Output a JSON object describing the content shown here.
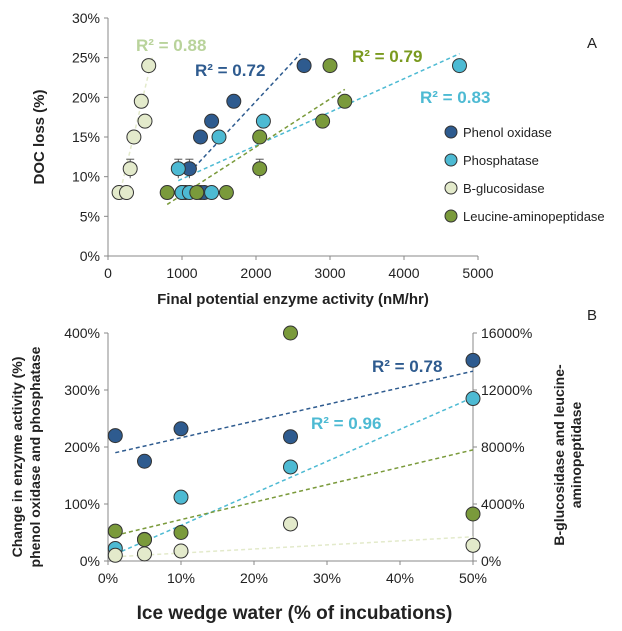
{
  "colors": {
    "phenol_oxidase": "#2e5b8f",
    "phosphatase": "#4dbad3",
    "b_glucosidase": "#e3eacb",
    "leucine_aminopeptidase": "#7a9a3b",
    "r2_phenol": "#2e5b8f",
    "r2_phosphatase": "#4dbad3",
    "r2_bglucosidase": "#b9d39b",
    "r2_leucine": "#7a9a1f",
    "axis": "#888888",
    "text": "#222222"
  },
  "chart_data": [
    {
      "type": "scatter",
      "panel_label": "A",
      "xlabel": "Final potential enzyme activity (nM/hr)",
      "ylabel": "DOC loss (%)",
      "xlim": [
        0,
        5000
      ],
      "ylim": [
        0,
        30
      ],
      "x_ticks": [
        0,
        1000,
        2000,
        3000,
        4000,
        5000
      ],
      "y_ticks": [
        0,
        5,
        10,
        15,
        20,
        25,
        30
      ],
      "x_tick_labels": [
        "0",
        "1000",
        "2000",
        "3000",
        "4000",
        "5000"
      ],
      "y_tick_labels": [
        "0%",
        "5%",
        "10%",
        "15%",
        "20%",
        "25%",
        "30%"
      ],
      "legend": [
        "Phenol oxidase",
        "Phosphatase",
        "B-glucosidase",
        "Leucine-aminopeptidase"
      ],
      "series": [
        {
          "name": "Phenol oxidase",
          "color_key": "phenol_oxidase",
          "points": [
            [
              1000,
              8
            ],
            [
              1050,
              8
            ],
            [
              1250,
              8
            ],
            [
              1300,
              8
            ],
            [
              1100,
              11
            ],
            [
              1250,
              15
            ],
            [
              1400,
              17
            ],
            [
              1700,
              19.5
            ],
            [
              2650,
              24
            ]
          ],
          "trendline": [
            [
              1100,
              10.5
            ],
            [
              2600,
              25.5
            ]
          ],
          "r2": "R² = 0.72"
        },
        {
          "name": "Phosphatase",
          "color_key": "phosphatase",
          "points": [
            [
              950,
              11
            ],
            [
              1000,
              8
            ],
            [
              1100,
              8
            ],
            [
              1400,
              8
            ],
            [
              1500,
              15
            ],
            [
              2100,
              17
            ],
            [
              4750,
              24
            ]
          ],
          "trendline": [
            [
              950,
              9.5
            ],
            [
              4750,
              25.5
            ]
          ],
          "r2": "R² = 0.83"
        },
        {
          "name": "B-glucosidase",
          "color_key": "b_glucosidase",
          "points": [
            [
              150,
              8
            ],
            [
              250,
              8
            ],
            [
              300,
              11
            ],
            [
              350,
              15
            ],
            [
              500,
              17
            ],
            [
              450,
              19.5
            ],
            [
              550,
              24
            ]
          ],
          "trendline": [
            [
              150,
              7.5
            ],
            [
              600,
              25
            ]
          ],
          "r2": "R² = 0.88"
        },
        {
          "name": "Leucine-aminopeptidase",
          "color_key": "leucine_aminopeptidase",
          "points": [
            [
              800,
              8
            ],
            [
              1200,
              8
            ],
            [
              1600,
              8
            ],
            [
              2050,
              11
            ],
            [
              2050,
              15
            ],
            [
              2900,
              17
            ],
            [
              3200,
              19.5
            ],
            [
              3000,
              24
            ]
          ],
          "trendline": [
            [
              800,
              6.5
            ],
            [
              3200,
              21
            ]
          ],
          "r2": "R² = 0.79"
        }
      ],
      "error_bars": [
        {
          "x": 300,
          "y": 11,
          "err": 1.2,
          "color_key": "b_glucosidase"
        },
        {
          "x": 950,
          "y": 11,
          "err": 1.2,
          "color_key": "phosphatase"
        },
        {
          "x": 1100,
          "y": 11,
          "err": 1.2,
          "color_key": "phenol_oxidase"
        },
        {
          "x": 2050,
          "y": 11,
          "err": 1.2,
          "color_key": "leucine_aminopeptidase"
        }
      ]
    },
    {
      "type": "scatter",
      "panel_label": "B",
      "xlabel": "Ice wedge water (% of incubations)",
      "ylabel_left": [
        "Change in enzyme activity (%)",
        "phenol oxidase and phosphatase"
      ],
      "ylabel_right": [
        "B-glucosidase and leucine-",
        "aminopeptidase"
      ],
      "xlim": [
        0,
        50
      ],
      "ylim_left": [
        0,
        400
      ],
      "ylim_right": [
        0,
        16000
      ],
      "x_ticks": [
        0,
        10,
        20,
        30,
        40,
        50
      ],
      "x_tick_labels": [
        "0%",
        "10%",
        "20%",
        "30%",
        "40%",
        "50%"
      ],
      "y_left_ticks": [
        0,
        100,
        200,
        300,
        400
      ],
      "y_left_tick_labels": [
        "0%",
        "100%",
        "200%",
        "300%",
        "400%"
      ],
      "y_right_ticks": [
        0,
        4000,
        8000,
        12000,
        16000
      ],
      "y_right_tick_labels": [
        "0%",
        "4000%",
        "8000%",
        "12000%",
        "16000%"
      ],
      "series": [
        {
          "name": "Phenol oxidase",
          "color_key": "phenol_oxidase",
          "axis": "left",
          "points": [
            [
              1,
              220
            ],
            [
              5,
              175
            ],
            [
              10,
              232
            ],
            [
              25,
              218
            ],
            [
              50,
              352
            ]
          ],
          "trendline": [
            [
              1,
              190
            ],
            [
              50,
              333
            ]
          ],
          "r2": "R² = 0.78"
        },
        {
          "name": "Phosphatase",
          "color_key": "phosphatase",
          "axis": "left",
          "points": [
            [
              1,
              22
            ],
            [
              5,
              38
            ],
            [
              10,
              112
            ],
            [
              25,
              165
            ],
            [
              50,
              285
            ]
          ],
          "trendline": [
            [
              1,
              12
            ],
            [
              50,
              287
            ]
          ],
          "r2": "R² = 0.96"
        },
        {
          "name": "B-glucosidase",
          "color_key": "b_glucosidase",
          "axis": "right",
          "points": [
            [
              1,
              400
            ],
            [
              5,
              500
            ],
            [
              10,
              700
            ],
            [
              25,
              2600
            ],
            [
              50,
              1100
            ]
          ],
          "trendline": [
            [
              1,
              300
            ],
            [
              50,
              1700
            ]
          ]
        },
        {
          "name": "Leucine-aminopeptidase",
          "color_key": "leucine_aminopeptidase",
          "axis": "right",
          "points": [
            [
              1,
              2100
            ],
            [
              5,
              1500
            ],
            [
              10,
              2000
            ],
            [
              25,
              16000
            ],
            [
              50,
              3300
            ]
          ],
          "trendline": [
            [
              1,
              1800
            ],
            [
              50,
              7800
            ]
          ]
        }
      ]
    }
  ]
}
